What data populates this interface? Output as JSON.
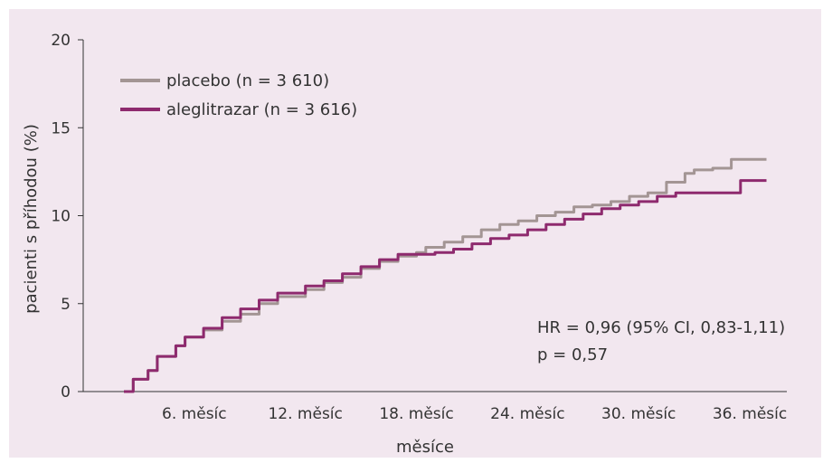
{
  "chart_data": {
    "type": "line",
    "title": "",
    "xlabel": "měsíce",
    "ylabel": "pacienti s příhodou (%)",
    "xlim": [
      0,
      38
    ],
    "ylim": [
      0,
      20
    ],
    "x_ticks": [
      {
        "value": 6,
        "label": "6. měsíc"
      },
      {
        "value": 12,
        "label": "12. měsíc"
      },
      {
        "value": 18,
        "label": "18. měsíc"
      },
      {
        "value": 24,
        "label": "24. měsíc"
      },
      {
        "value": 30,
        "label": "30. měsíc"
      },
      {
        "value": 36,
        "label": "36. měsíc"
      }
    ],
    "y_ticks": [
      {
        "value": 0,
        "label": "0"
      },
      {
        "value": 5,
        "label": "5"
      },
      {
        "value": 10,
        "label": "10"
      },
      {
        "value": 15,
        "label": "15"
      },
      {
        "value": 20,
        "label": "20"
      }
    ],
    "grid": false,
    "legend_position": "top-left",
    "series": [
      {
        "name": "placebo (n = 3 610)",
        "color": "#a39594",
        "points": [
          [
            2.2,
            0
          ],
          [
            2.7,
            0.7
          ],
          [
            3.5,
            1.2
          ],
          [
            4,
            2
          ],
          [
            5,
            2.6
          ],
          [
            5.5,
            3.1
          ],
          [
            6.5,
            3.5
          ],
          [
            7.5,
            4.0
          ],
          [
            8.5,
            4.4
          ],
          [
            9.5,
            5.0
          ],
          [
            10.5,
            5.4
          ],
          [
            12,
            5.8
          ],
          [
            13,
            6.2
          ],
          [
            14,
            6.5
          ],
          [
            15,
            7.0
          ],
          [
            16,
            7.4
          ],
          [
            17,
            7.7
          ],
          [
            18,
            7.9
          ],
          [
            18.5,
            8.2
          ],
          [
            19.5,
            8.5
          ],
          [
            20.5,
            8.8
          ],
          [
            21.5,
            9.2
          ],
          [
            22.5,
            9.5
          ],
          [
            23.5,
            9.7
          ],
          [
            24.5,
            10.0
          ],
          [
            25.5,
            10.2
          ],
          [
            26.5,
            10.5
          ],
          [
            27.5,
            10.6
          ],
          [
            28.5,
            10.8
          ],
          [
            29.5,
            11.1
          ],
          [
            30.5,
            11.3
          ],
          [
            31.5,
            11.9
          ],
          [
            32.5,
            12.4
          ],
          [
            33,
            12.6
          ],
          [
            34,
            12.7
          ],
          [
            35,
            13.2
          ],
          [
            36,
            13.2
          ],
          [
            36.9,
            13.2
          ]
        ]
      },
      {
        "name": "aleglitrazar (n = 3 616)",
        "color": "#8e2a6e",
        "points": [
          [
            2.2,
            0
          ],
          [
            2.7,
            0.7
          ],
          [
            3.5,
            1.2
          ],
          [
            4,
            2
          ],
          [
            5,
            2.6
          ],
          [
            5.5,
            3.1
          ],
          [
            6.5,
            3.6
          ],
          [
            7.5,
            4.2
          ],
          [
            8.5,
            4.7
          ],
          [
            9.5,
            5.2
          ],
          [
            10.5,
            5.6
          ],
          [
            12,
            6.0
          ],
          [
            13,
            6.3
          ],
          [
            14,
            6.7
          ],
          [
            15,
            7.1
          ],
          [
            16,
            7.5
          ],
          [
            17,
            7.8
          ],
          [
            18,
            7.8
          ],
          [
            19,
            7.9
          ],
          [
            20,
            8.1
          ],
          [
            21,
            8.4
          ],
          [
            22,
            8.7
          ],
          [
            23,
            8.9
          ],
          [
            24,
            9.2
          ],
          [
            25,
            9.5
          ],
          [
            26,
            9.8
          ],
          [
            27,
            10.1
          ],
          [
            28,
            10.4
          ],
          [
            29,
            10.6
          ],
          [
            30,
            10.8
          ],
          [
            31,
            11.1
          ],
          [
            32,
            11.3
          ],
          [
            33,
            11.3
          ],
          [
            34,
            11.3
          ],
          [
            35,
            11.3
          ],
          [
            35.5,
            12.0
          ],
          [
            36.9,
            12.0
          ]
        ]
      }
    ],
    "annotations": [
      "HR = 0,96 (95% CI, 0,83-1,11)",
      "p = 0,57"
    ]
  }
}
